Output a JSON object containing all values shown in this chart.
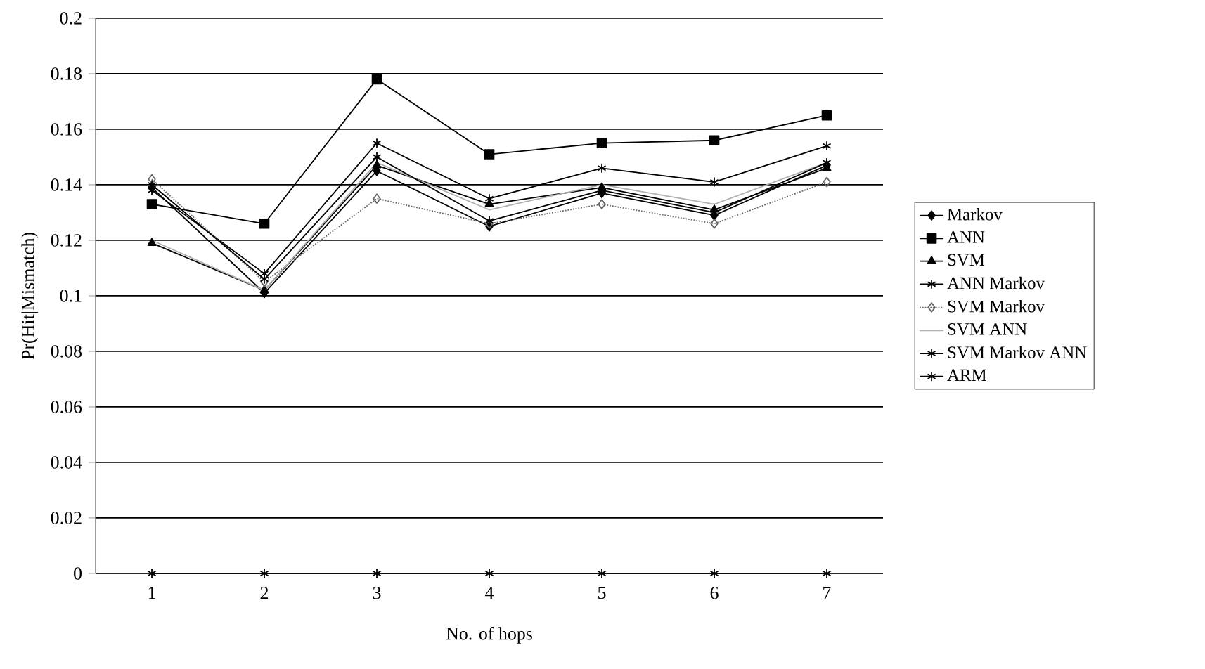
{
  "chart_data": {
    "type": "line",
    "xlabel": "No. of hops",
    "ylabel": "Pr(Hit|Mismatch)",
    "categories": [
      "1",
      "2",
      "3",
      "4",
      "5",
      "6",
      "7"
    ],
    "ylim": [
      0,
      0.2
    ],
    "yticks": [
      0,
      0.02,
      0.04,
      0.06,
      0.08,
      0.1,
      0.12,
      0.14,
      0.16,
      0.18,
      0.2
    ],
    "grid": "y",
    "legend": "right",
    "series": [
      {
        "name": "Markov",
        "color": "#000000",
        "marker": "diamond",
        "line_style": "solid",
        "values": [
          0.139,
          0.101,
          0.145,
          0.125,
          0.137,
          0.129,
          0.147
        ]
      },
      {
        "name": "ANN",
        "color": "#000000",
        "marker": "square",
        "line_style": "solid",
        "values": [
          0.133,
          0.126,
          0.178,
          0.151,
          0.155,
          0.156,
          0.165
        ]
      },
      {
        "name": "SVM",
        "color": "#000000",
        "marker": "triangle",
        "line_style": "solid",
        "values": [
          0.119,
          0.102,
          0.147,
          0.133,
          0.139,
          0.131,
          0.146
        ]
      },
      {
        "name": "ANN Markov",
        "color": "#000000",
        "marker": "cross",
        "line_style": "solid",
        "values": [
          0.138,
          0.108,
          0.155,
          0.135,
          0.146,
          0.141,
          0.154
        ]
      },
      {
        "name": "SVM Markov",
        "color": "#666666",
        "marker": "diamond",
        "line_style": "dotted",
        "values": [
          0.142,
          0.105,
          0.135,
          0.126,
          0.133,
          0.126,
          0.141
        ]
      },
      {
        "name": "SVM ANN",
        "color": "#b0b0b0",
        "marker": "none",
        "line_style": "solid",
        "values": [
          0.12,
          0.102,
          0.148,
          0.131,
          0.14,
          0.133,
          0.148
        ]
      },
      {
        "name": "SVM Markov ANN",
        "color": "#000000",
        "marker": "cross",
        "line_style": "solid",
        "values": [
          0.14,
          0.106,
          0.15,
          0.127,
          0.138,
          0.13,
          0.148
        ]
      },
      {
        "name": "ARM",
        "color": "#000000",
        "marker": "cross",
        "line_style": "solid",
        "values": [
          0,
          0,
          0,
          0,
          0,
          0,
          0
        ]
      }
    ]
  }
}
